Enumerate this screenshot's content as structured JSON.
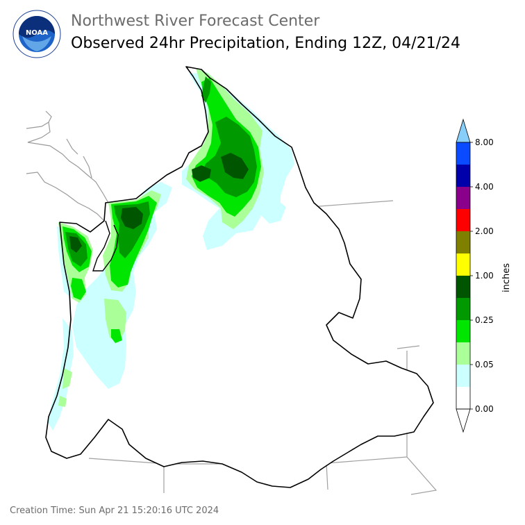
{
  "header": {
    "agency": "Northwest River Forecast Center",
    "product": "Observed 24hr Precipitation, Ending 12Z, 04/21/24",
    "logo_text": "NOAA"
  },
  "legend": {
    "unit_label": "inches",
    "tick_labels": [
      "8.00",
      "4.00",
      "2.00",
      "1.00",
      "0.25",
      "0.05",
      "0.00"
    ],
    "colors_top_to_bottom": [
      "#0a4bff",
      "#0000aa",
      "#8a008a",
      "#ff0000",
      "#808000",
      "#ffff00",
      "#005500",
      "#009900",
      "#00e600",
      "#aaff99",
      "#ccffff",
      "#ffffff"
    ],
    "overflow_color": "#87cefa"
  },
  "map": {
    "colors": {
      "trace": "#ccffff",
      "light": "#aaff99",
      "moderate": "#00e600",
      "heavy": "#009900",
      "very_heavy": "#005500",
      "basin_outline": "#000000",
      "state_lines": "#a0a0a0"
    }
  },
  "footer": {
    "creation_time": "Creation Time: Sun Apr 21 15:20:16 UTC 2024"
  }
}
